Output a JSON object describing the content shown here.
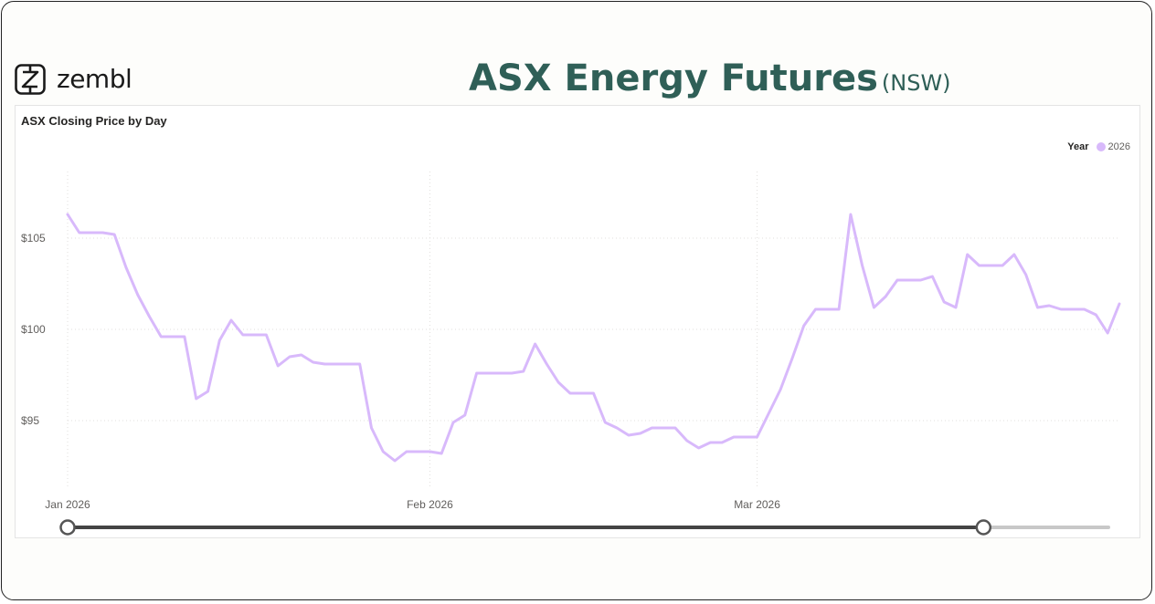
{
  "header": {
    "logo_text": "zembl",
    "title": "ASX Energy Futures",
    "title_suffix": "(NSW)"
  },
  "visual": {
    "title": "ASX Closing Price by Day"
  },
  "legend": {
    "title": "Year",
    "items": [
      "2026"
    ]
  },
  "colors": {
    "series": "#d8b9fb",
    "title": "#2f5f57",
    "slider": "#444444",
    "slider_track": "#c8c8c8"
  },
  "slider": {
    "start_fraction": 0.0,
    "end_fraction": 0.88
  },
  "chart_data": {
    "type": "line",
    "title": "ASX Closing Price by Day",
    "xlabel": "",
    "ylabel": "",
    "x_ticks": [
      {
        "label": "Jan 2026",
        "day": 0
      },
      {
        "label": "Feb 2026",
        "day": 31
      },
      {
        "label": "Mar 2026",
        "day": 59
      }
    ],
    "y_ticks": [
      {
        "label": "$95",
        "value": 95
      },
      {
        "label": "$100",
        "value": 100
      },
      {
        "label": "$105",
        "value": 105
      }
    ],
    "xlim": [
      "2026-01-01",
      "2026-03-31"
    ],
    "ylim": [
      91.5,
      108.5
    ],
    "grid": true,
    "legend_position": "top-right",
    "series": [
      {
        "name": "2026",
        "points": [
          [
            "2026-01-01",
            106.3
          ],
          [
            "2026-01-02",
            105.3
          ],
          [
            "2026-01-03",
            105.3
          ],
          [
            "2026-01-04",
            105.3
          ],
          [
            "2026-01-05",
            105.2
          ],
          [
            "2026-01-06",
            103.4
          ],
          [
            "2026-01-07",
            101.9
          ],
          [
            "2026-01-08",
            100.7
          ],
          [
            "2026-01-09",
            99.6
          ],
          [
            "2026-01-10",
            99.6
          ],
          [
            "2026-01-11",
            99.6
          ],
          [
            "2026-01-12",
            96.2
          ],
          [
            "2026-01-13",
            96.6
          ],
          [
            "2026-01-14",
            99.4
          ],
          [
            "2026-01-15",
            100.5
          ],
          [
            "2026-01-16",
            99.7
          ],
          [
            "2026-01-17",
            99.7
          ],
          [
            "2026-01-18",
            99.7
          ],
          [
            "2026-01-19",
            98.0
          ],
          [
            "2026-01-20",
            98.5
          ],
          [
            "2026-01-21",
            98.6
          ],
          [
            "2026-01-22",
            98.2
          ],
          [
            "2026-01-23",
            98.1
          ],
          [
            "2026-01-24",
            98.1
          ],
          [
            "2026-01-25",
            98.1
          ],
          [
            "2026-01-26",
            98.1
          ],
          [
            "2026-01-27",
            94.6
          ],
          [
            "2026-01-28",
            93.3
          ],
          [
            "2026-01-29",
            92.8
          ],
          [
            "2026-01-30",
            93.3
          ],
          [
            "2026-01-31",
            93.3
          ],
          [
            "2026-02-01",
            93.3
          ],
          [
            "2026-02-02",
            93.2
          ],
          [
            "2026-02-03",
            94.9
          ],
          [
            "2026-02-04",
            95.3
          ],
          [
            "2026-02-05",
            97.6
          ],
          [
            "2026-02-06",
            97.6
          ],
          [
            "2026-02-07",
            97.6
          ],
          [
            "2026-02-08",
            97.6
          ],
          [
            "2026-02-09",
            97.7
          ],
          [
            "2026-02-10",
            99.2
          ],
          [
            "2026-02-11",
            98.1
          ],
          [
            "2026-02-12",
            97.1
          ],
          [
            "2026-02-13",
            96.5
          ],
          [
            "2026-02-14",
            96.5
          ],
          [
            "2026-02-15",
            96.5
          ],
          [
            "2026-02-16",
            94.9
          ],
          [
            "2026-02-17",
            94.6
          ],
          [
            "2026-02-18",
            94.2
          ],
          [
            "2026-02-19",
            94.3
          ],
          [
            "2026-02-20",
            94.6
          ],
          [
            "2026-02-21",
            94.6
          ],
          [
            "2026-02-22",
            94.6
          ],
          [
            "2026-02-23",
            93.9
          ],
          [
            "2026-02-24",
            93.5
          ],
          [
            "2026-02-25",
            93.8
          ],
          [
            "2026-02-26",
            93.8
          ],
          [
            "2026-02-27",
            94.1
          ],
          [
            "2026-02-28",
            94.1
          ],
          [
            "2026-03-01",
            94.1
          ],
          [
            "2026-03-02",
            95.4
          ],
          [
            "2026-03-03",
            96.7
          ],
          [
            "2026-03-04",
            98.4
          ],
          [
            "2026-03-05",
            100.2
          ],
          [
            "2026-03-06",
            101.1
          ],
          [
            "2026-03-07",
            101.1
          ],
          [
            "2026-03-08",
            101.1
          ],
          [
            "2026-03-09",
            106.3
          ],
          [
            "2026-03-10",
            103.5
          ],
          [
            "2026-03-11",
            101.2
          ],
          [
            "2026-03-12",
            101.8
          ],
          [
            "2026-03-13",
            102.7
          ],
          [
            "2026-03-14",
            102.7
          ],
          [
            "2026-03-15",
            102.7
          ],
          [
            "2026-03-16",
            102.9
          ],
          [
            "2026-03-17",
            101.5
          ],
          [
            "2026-03-18",
            101.2
          ],
          [
            "2026-03-19",
            104.1
          ],
          [
            "2026-03-20",
            103.5
          ],
          [
            "2026-03-21",
            103.5
          ],
          [
            "2026-03-22",
            103.5
          ],
          [
            "2026-03-23",
            104.1
          ],
          [
            "2026-03-24",
            103.0
          ],
          [
            "2026-03-25",
            101.2
          ],
          [
            "2026-03-26",
            101.3
          ],
          [
            "2026-03-27",
            101.1
          ],
          [
            "2026-03-28",
            101.1
          ],
          [
            "2026-03-29",
            101.1
          ],
          [
            "2026-03-30",
            100.8
          ],
          [
            "2026-03-31",
            99.8
          ],
          [
            "2026-04-01",
            101.4
          ]
        ]
      }
    ]
  }
}
